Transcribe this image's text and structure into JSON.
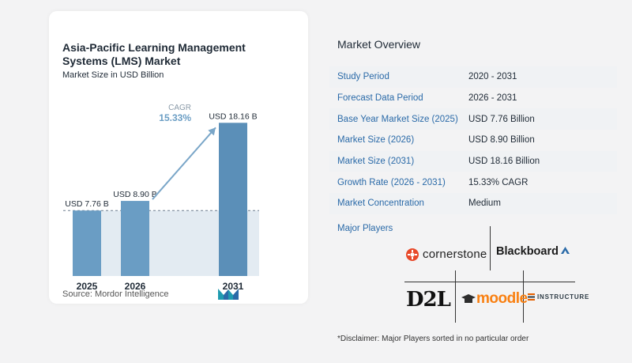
{
  "chart_data": {
    "type": "bar",
    "title": "Asia-Pacific Learning Management Systems (LMS) Market",
    "subtitle": "Market Size in USD Billion",
    "categories": [
      "2025",
      "2026",
      "2031"
    ],
    "values": [
      7.76,
      8.9,
      18.16
    ],
    "data_labels": [
      "USD 7.76 B",
      "USD 8.90 B",
      "USD 18.16 B"
    ],
    "ylim": [
      0,
      19.5
    ],
    "annotation": {
      "label": "CAGR",
      "value": "15.33%"
    },
    "colors": {
      "bar": "#6a9dc4",
      "bar_dark": "#5b8fb8",
      "band": "#e3ebf2",
      "arrow": "#7aa6c8"
    }
  },
  "source": "Source: Mordor Intelligence",
  "overview": {
    "title": "Market Overview",
    "rows": [
      {
        "label": "Study Period",
        "value": "2020 - 2031"
      },
      {
        "label": "Forecast Data Period",
        "value": "2026 - 2031"
      },
      {
        "label": "Base Year Market Size (2025)",
        "value": "USD 7.76 Billion"
      },
      {
        "label": "Market Size (2026)",
        "value": "USD 8.90 Billion"
      },
      {
        "label": "Market Size (2031)",
        "value": "USD 18.16 Billion"
      },
      {
        "label": "Growth Rate (2026 - 2031)",
        "value": "15.33% CAGR"
      },
      {
        "label": "Market Concentration",
        "value": "Medium"
      }
    ]
  },
  "players": {
    "title": "Major Players",
    "cornerstone": "cornerstone",
    "blackboard": "Blackboard",
    "d2l": "D2L",
    "moodle": "moodle",
    "instructure": "INSTRUCTURE"
  },
  "disclaimer": "*Disclaimer: Major Players sorted in no particular order"
}
